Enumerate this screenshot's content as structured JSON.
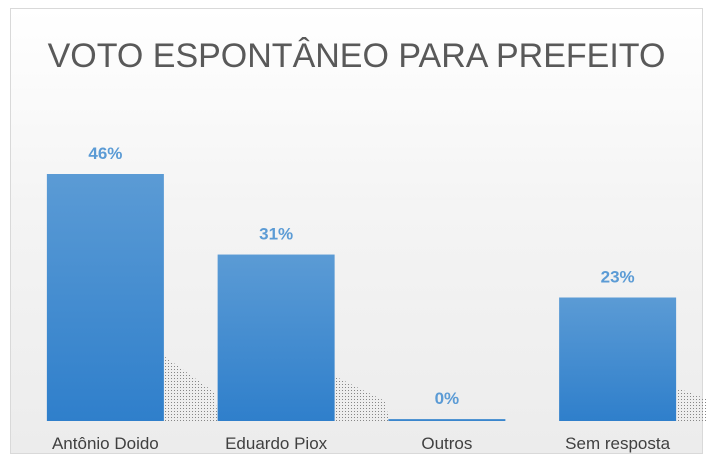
{
  "chart_data": {
    "type": "bar",
    "title": "VOTO ESPONTÂNEO PARA PREFEITO",
    "categories": [
      "Antônio Doido",
      "Eduardo Piox",
      "Outros",
      "Sem resposta"
    ],
    "values": [
      46,
      31,
      0,
      23
    ],
    "value_labels": [
      "46%",
      "31%",
      "0%",
      "23%"
    ],
    "unit": "%",
    "ylim": [
      0,
      50
    ],
    "grid": false,
    "legend": "none",
    "bar_color_top": "#5b9bd5",
    "bar_color_bottom": "#2f7fcb",
    "label_color": "#5b9bd5"
  }
}
